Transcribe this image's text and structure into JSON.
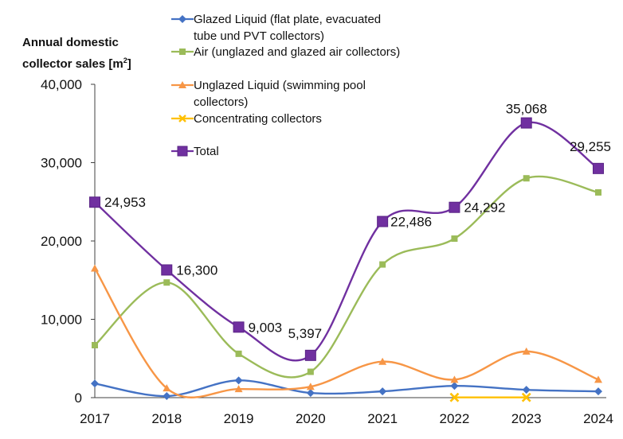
{
  "chart_data": {
    "type": "line",
    "title": "",
    "ylabel_line1": "Annual domestic",
    "ylabel_line2": "collector sales [m",
    "ylabel_sup": "2",
    "ylabel_end": "]",
    "xlabel": "",
    "categories": [
      "2017",
      "2018",
      "2019",
      "2020",
      "2021",
      "2022",
      "2023",
      "2024"
    ],
    "ylim": [
      0,
      40000
    ],
    "yticks": [
      0,
      10000,
      20000,
      30000,
      40000
    ],
    "ytick_labels": [
      "0",
      "10,000",
      "20,000",
      "30,000",
      "40,000"
    ],
    "grid": false,
    "legend_position": "top",
    "series": [
      {
        "key": "glazed",
        "name_line1": "Glazed Liquid (flat plate, evacuated",
        "name_line2": "tube und PVT collectors)",
        "color": "#4472C4",
        "marker": "diamond",
        "values": [
          1800,
          200,
          2200,
          600,
          800,
          1500,
          1000,
          800
        ]
      },
      {
        "key": "air",
        "name_line1": "Air (unglazed and glazed air collectors)",
        "name_line2": "",
        "color": "#9BBB59",
        "marker": "square",
        "values": [
          6700,
          14700,
          5600,
          3300,
          17000,
          20300,
          28000,
          26200
        ]
      },
      {
        "key": "unglazed",
        "name_line1": "Unglazed Liquid (swimming pool",
        "name_line2": "collectors)",
        "color": "#F79646",
        "marker": "triangle",
        "values": [
          16500,
          1200,
          1100,
          1400,
          4600,
          2300,
          5900,
          2300
        ]
      },
      {
        "key": "concentrating",
        "name_line1": "Concentrating collectors",
        "name_line2": "",
        "color": "#FFC000",
        "marker": "x",
        "values": [
          null,
          null,
          null,
          null,
          null,
          30,
          30,
          null
        ]
      },
      {
        "key": "total",
        "name_line1": "Total",
        "name_line2": "",
        "color": "#7030A0",
        "marker": "square-big",
        "values": [
          24953,
          16300,
          9003,
          5397,
          22486,
          24292,
          35068,
          29255
        ],
        "data_labels": [
          "24,953",
          "16,300",
          "9,003",
          "5,397",
          "22,486",
          "24,292",
          "35,068",
          "29,255"
        ]
      }
    ]
  }
}
